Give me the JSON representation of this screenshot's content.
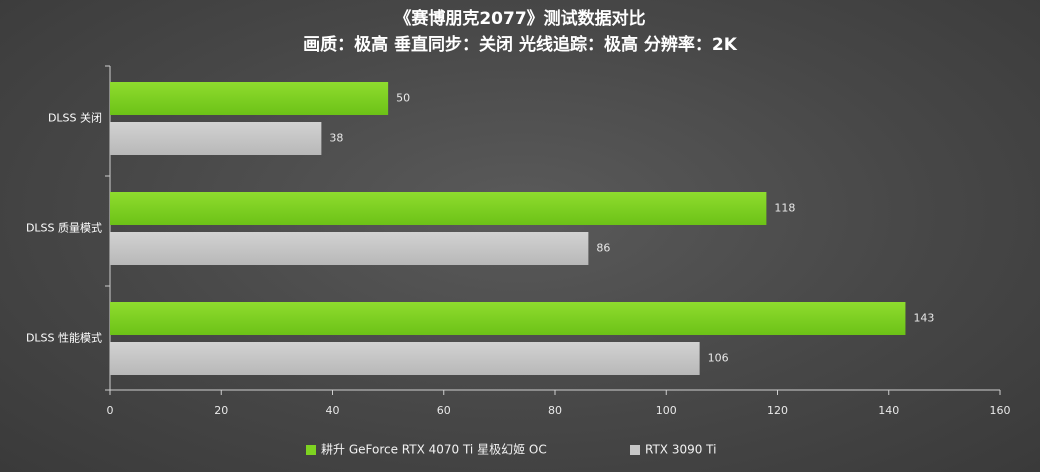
{
  "chart_data": {
    "type": "bar",
    "orientation": "horizontal",
    "title": "《赛博朋克2077》测试数据对比",
    "subtitle": "画质：极高 垂直同步：关闭 光线追踪：极高 分辨率：2K",
    "categories": [
      "DLSS 关闭",
      "DLSS 质量模式",
      "DLSS 性能模式"
    ],
    "series": [
      {
        "name": "耕升 GeForce RTX 4070 Ti 星极幻姬 OC",
        "values": [
          50,
          118,
          143
        ],
        "color": "#7ed321"
      },
      {
        "name": "RTX 3090 Ti",
        "values": [
          38,
          86,
          106
        ],
        "color": "#c8c8c8"
      }
    ],
    "xlim": [
      0,
      160
    ],
    "xticks": [
      0,
      20,
      40,
      60,
      80,
      100,
      120,
      140,
      160
    ],
    "grid": false,
    "legend_position": "bottom-center",
    "xlabel": "",
    "ylabel": ""
  }
}
